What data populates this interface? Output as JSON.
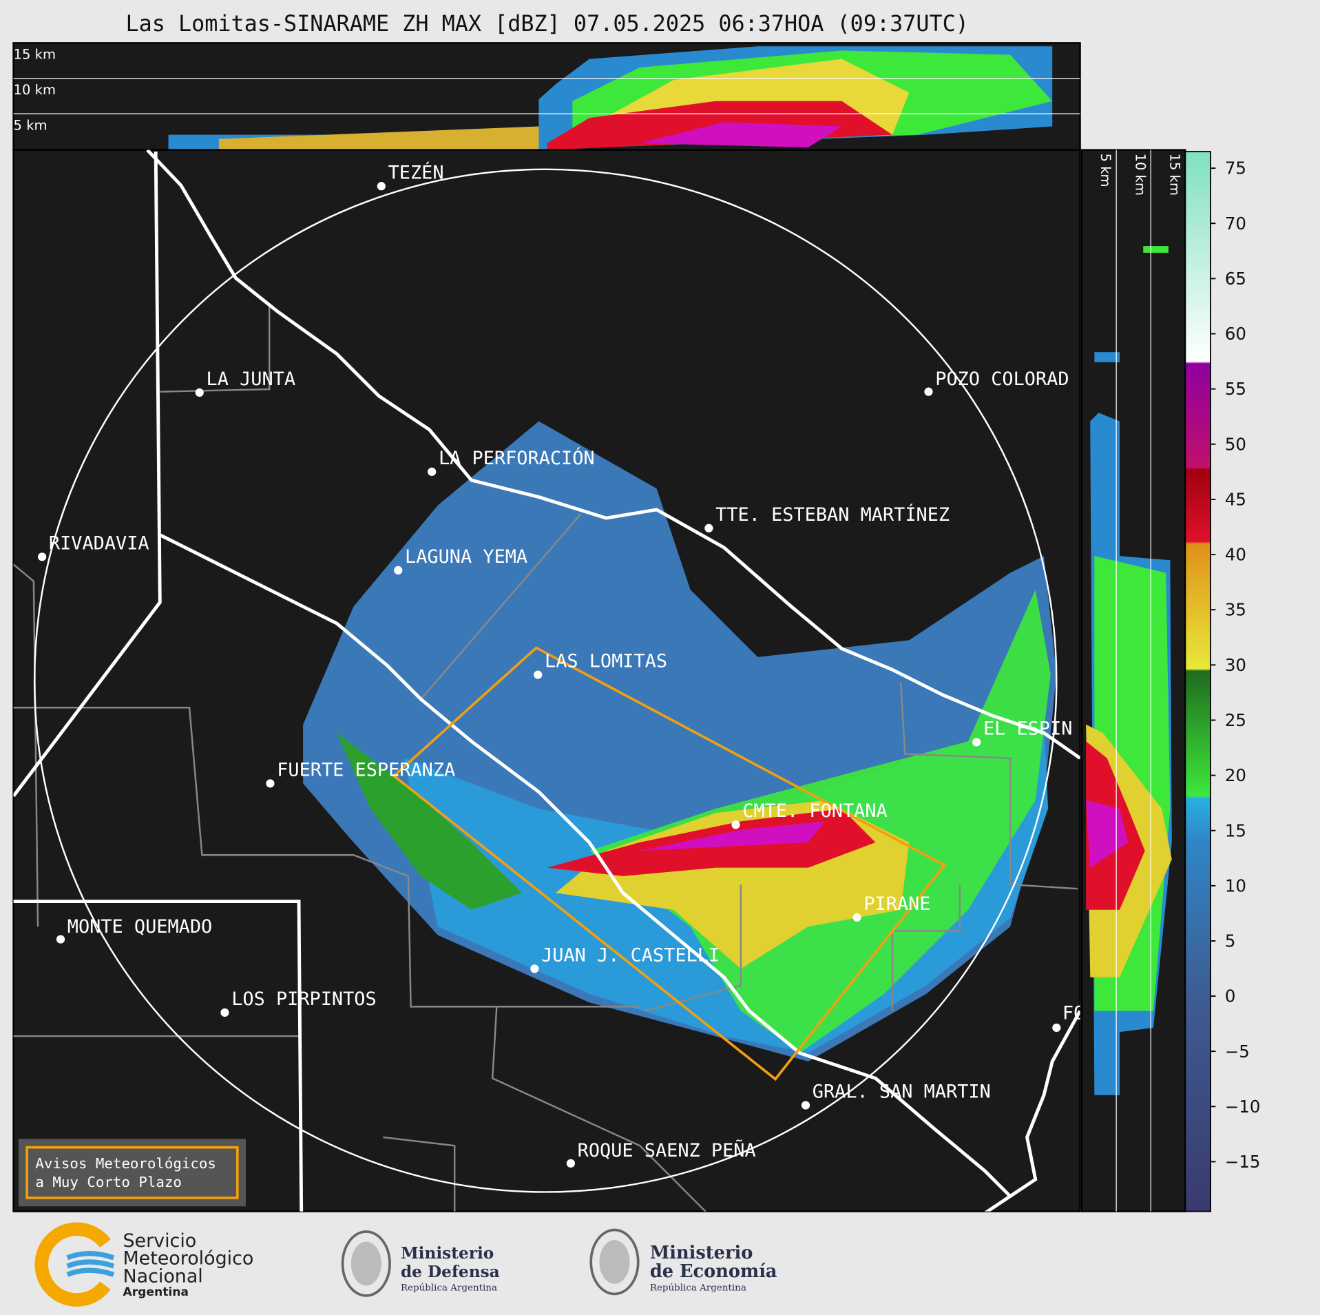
{
  "title": "Las Lomitas-SINARAME ZH MAX [dBZ] 07.05.2025 06:37HOA (09:37UTC)",
  "top_panel": {
    "height_labels": [
      "15 km",
      "10 km",
      "5 km"
    ]
  },
  "side_panel": {
    "height_labels": [
      "5 km",
      "10 km",
      "15 km"
    ]
  },
  "places": [
    "TEZÉN",
    "LA JUNTA",
    "POZO COLORAD",
    "LA PERFORACIÓN",
    "TTE. ESTEBAN MARTÍNEZ",
    "RIVADAVIA",
    "LAGUNA YEMA",
    "LAS LOMITAS",
    "EL ESPIN",
    "FUERTE ESPERANZA",
    "CMTE. FONTANA",
    "PIRANE",
    "MONTE QUEMADO",
    "JUAN J. CASTELLI",
    "LOS PIRPINTOS",
    "GRAL. SAN MARTIN",
    "ROQUE SAENZ PEÑA",
    "FO"
  ],
  "colorbar": {
    "lim": [
      -19.5,
      76.5
    ],
    "ticks": [
      75,
      70,
      65,
      60,
      55,
      50,
      45,
      40,
      35,
      30,
      25,
      20,
      15,
      10,
      5,
      0,
      {
        "value": -5,
        "label": "−5"
      },
      {
        "value": -10,
        "label": "−10"
      },
      {
        "value": -15,
        "label": "−15"
      }
    ]
  },
  "legend_box": [
    "Avisos Meteorológicos",
    "a Muy Corto Plazo"
  ],
  "logos": {
    "smn": [
      "Servicio",
      "Meteorológico",
      "Nacional",
      "Argentina"
    ],
    "defensa": [
      "Ministerio",
      "de Defensa",
      "República Argentina"
    ],
    "economia": [
      "Ministerio",
      "de Economía",
      "República Argentina"
    ]
  }
}
